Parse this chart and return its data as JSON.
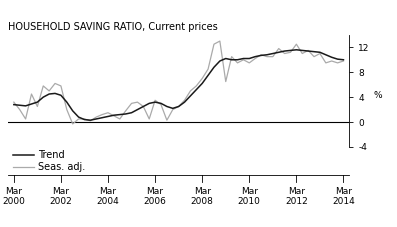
{
  "title": "HOUSEHOLD SAVING RATIO, Current prices",
  "ylabel": "%",
  "ylim": [
    -4,
    14
  ],
  "yticks": [
    -4,
    0,
    4,
    8,
    12
  ],
  "xlim": [
    2000.0,
    2014.5
  ],
  "xtick_positions": [
    2000.25,
    2002.25,
    2004.25,
    2006.25,
    2008.25,
    2010.25,
    2012.25,
    2014.25
  ],
  "xtick_labels": [
    "Mar\n2000",
    "Mar\n2002",
    "Mar\n2004",
    "Mar\n2006",
    "Mar\n2008",
    "Mar\n2010",
    "Mar\n2012",
    "Mar\n2014"
  ],
  "trend_color": "#1a1a1a",
  "seas_color": "#aaaaaa",
  "trend_x": [
    2000.25,
    2000.5,
    2000.75,
    2001.0,
    2001.25,
    2001.5,
    2001.75,
    2002.0,
    2002.25,
    2002.5,
    2002.75,
    2003.0,
    2003.25,
    2003.5,
    2003.75,
    2004.0,
    2004.25,
    2004.5,
    2004.75,
    2005.0,
    2005.25,
    2005.5,
    2005.75,
    2006.0,
    2006.25,
    2006.5,
    2006.75,
    2007.0,
    2007.25,
    2007.5,
    2007.75,
    2008.0,
    2008.25,
    2008.5,
    2008.75,
    2009.0,
    2009.25,
    2009.5,
    2009.75,
    2010.0,
    2010.25,
    2010.5,
    2010.75,
    2011.0,
    2011.25,
    2011.5,
    2011.75,
    2012.0,
    2012.25,
    2012.5,
    2012.75,
    2013.0,
    2013.25,
    2013.5,
    2013.75,
    2014.0,
    2014.25
  ],
  "trend_y": [
    2.8,
    2.7,
    2.6,
    2.9,
    3.2,
    4.0,
    4.5,
    4.6,
    4.3,
    3.2,
    1.8,
    0.8,
    0.4,
    0.3,
    0.5,
    0.7,
    0.9,
    1.1,
    1.2,
    1.3,
    1.5,
    2.0,
    2.5,
    3.0,
    3.2,
    3.0,
    2.5,
    2.2,
    2.5,
    3.2,
    4.2,
    5.2,
    6.2,
    7.5,
    8.8,
    9.8,
    10.2,
    10.0,
    10.0,
    10.2,
    10.2,
    10.5,
    10.7,
    10.8,
    11.0,
    11.2,
    11.4,
    11.5,
    11.6,
    11.5,
    11.4,
    11.3,
    11.2,
    10.8,
    10.4,
    10.1,
    10.0
  ],
  "seas_y": [
    3.2,
    2.0,
    0.5,
    4.5,
    2.5,
    5.8,
    5.0,
    6.2,
    5.8,
    2.0,
    -0.3,
    0.5,
    0.5,
    0.2,
    0.8,
    1.2,
    1.5,
    1.0,
    0.5,
    1.8,
    3.0,
    3.2,
    2.5,
    0.5,
    3.5,
    2.8,
    0.3,
    2.0,
    2.5,
    3.5,
    5.0,
    5.8,
    7.0,
    8.5,
    12.5,
    13.0,
    6.5,
    10.5,
    9.5,
    10.0,
    9.5,
    10.2,
    10.8,
    10.5,
    10.5,
    11.8,
    11.0,
    11.2,
    12.5,
    11.0,
    11.5,
    10.5,
    11.0,
    9.5,
    9.8,
    9.5,
    9.8
  ],
  "legend_labels": [
    "Trend",
    "Seas. adj."
  ],
  "title_fontsize": 7.0,
  "tick_fontsize": 6.5,
  "legend_fontsize": 7.0
}
